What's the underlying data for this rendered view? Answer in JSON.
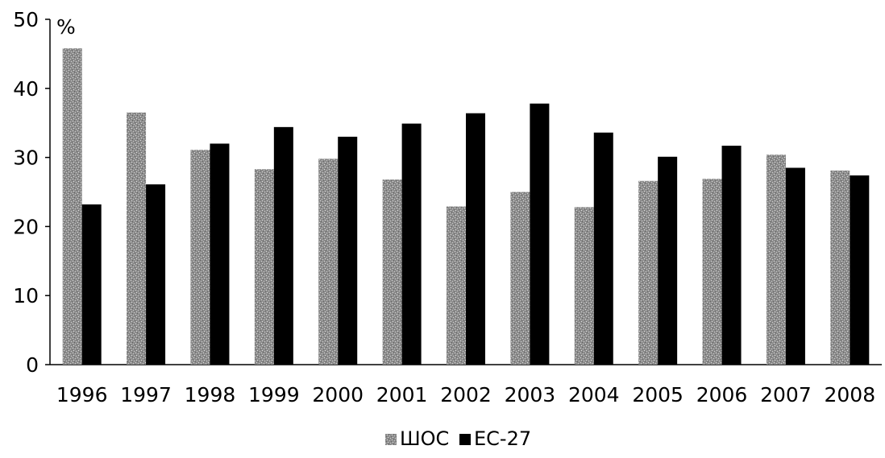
{
  "chart_data": {
    "type": "bar",
    "title": "",
    "xlabel": "",
    "ylabel": "%",
    "ylim": [
      0,
      50
    ],
    "yticks": [
      0,
      10,
      20,
      30,
      40,
      50
    ],
    "grid": false,
    "legend_position": "bottom",
    "categories": [
      "1996",
      "1997",
      "1998",
      "1999",
      "2000",
      "2001",
      "2002",
      "2003",
      "2004",
      "2005",
      "2006",
      "2007",
      "2008"
    ],
    "series": [
      {
        "name": "ШОС",
        "color": "#8a8a8a",
        "pattern": "stippled-gray",
        "values": [
          45.8,
          36.5,
          31.1,
          28.3,
          29.8,
          26.8,
          22.9,
          25.0,
          22.8,
          26.6,
          26.9,
          30.4,
          28.1
        ]
      },
      {
        "name": "ЕС-27",
        "color": "#000000",
        "pattern": "solid",
        "values": [
          23.2,
          26.1,
          32.0,
          34.4,
          33.0,
          34.9,
          36.4,
          37.8,
          33.6,
          30.1,
          31.7,
          28.5,
          27.4
        ]
      }
    ]
  }
}
